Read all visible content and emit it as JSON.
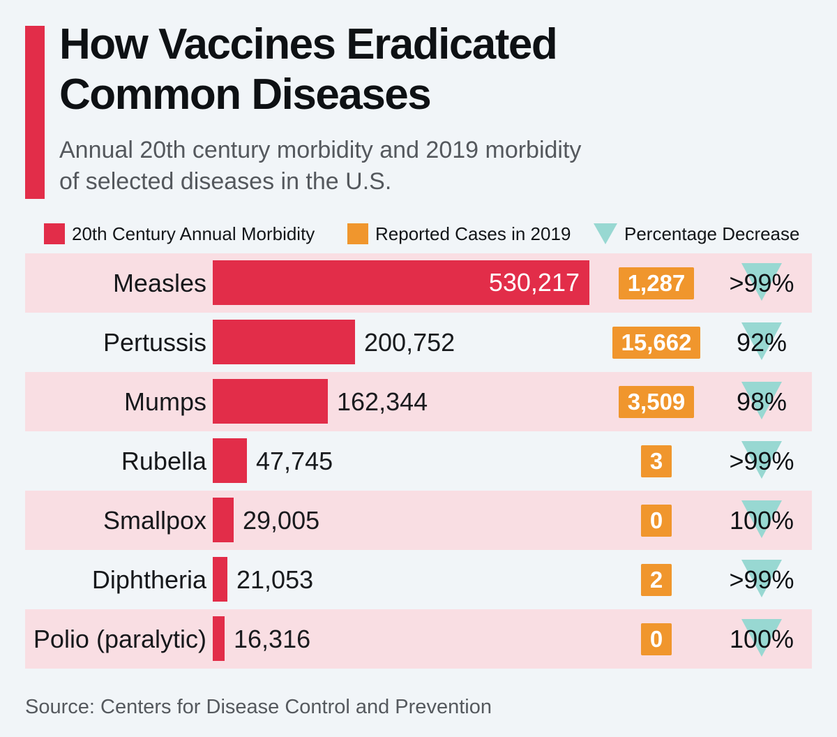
{
  "header": {
    "title_line1": "How Vaccines Eradicated",
    "title_line2": "Common Diseases",
    "subtitle_line1": "Annual 20th century morbidity and 2019 morbidity",
    "subtitle_line2": "of selected diseases in the U.S."
  },
  "legend": {
    "items": [
      {
        "label": "20th Century Annual Morbidity",
        "swatch": "red-square",
        "color": "#e22d49"
      },
      {
        "label": "Reported Cases in 2019",
        "swatch": "orange-square",
        "color": "#f0962d"
      },
      {
        "label": "Percentage Decrease",
        "swatch": "teal-triangle-down",
        "color": "#98d8d2"
      }
    ]
  },
  "chart_data": {
    "type": "bar",
    "orientation": "horizontal",
    "title": "How Vaccines Eradicated Common Diseases",
    "subtitle": "Annual 20th century morbidity and 2019 morbidity of selected diseases in the U.S.",
    "categories": [
      "Measles",
      "Pertussis",
      "Mumps",
      "Rubella",
      "Smallpox",
      "Diphtheria",
      "Polio (paralytic)"
    ],
    "series": [
      {
        "name": "20th Century Annual Morbidity",
        "values": [
          530217,
          200752,
          162344,
          47745,
          29005,
          21053,
          16316
        ],
        "labels": [
          "530,217",
          "200,752",
          "162,344",
          "47,745",
          "29,005",
          "21,053",
          "16,316"
        ]
      },
      {
        "name": "Reported Cases in 2019",
        "values": [
          1287,
          15662,
          3509,
          3,
          0,
          2,
          0
        ],
        "labels": [
          "1,287",
          "15,662",
          "3,509",
          "3",
          "0",
          "2",
          "0"
        ]
      },
      {
        "name": "Percentage Decrease",
        "labels": [
          ">99%",
          "92%",
          "98%",
          ">99%",
          "100%",
          ">99%",
          "100%"
        ]
      }
    ],
    "x_max": 530217,
    "grid": false,
    "legend_position": "top",
    "row_shading": "alternate-starting-first"
  },
  "footer": {
    "source": "Source: Centers for Disease Control and Prevention"
  },
  "colors": {
    "background": "#f1f5f8",
    "row_shade": "#f9dee3",
    "bar_red": "#e22d49",
    "badge_orange": "#f0962d",
    "triangle_teal": "#98d8d2",
    "title_text": "#0e1114",
    "subtitle_text": "#54585d"
  }
}
